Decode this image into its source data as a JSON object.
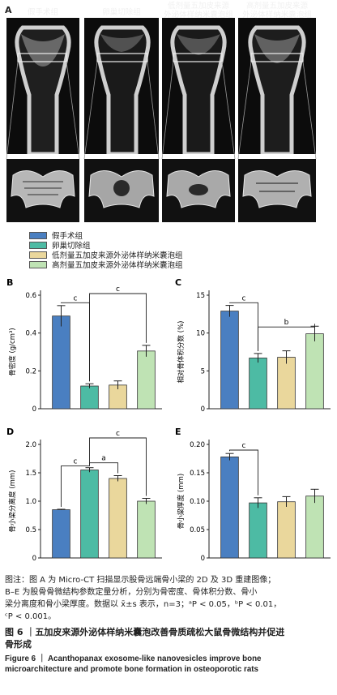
{
  "panelA": {
    "letter": "A",
    "groups": [
      "假手术组",
      "卵巢切除组",
      "低剂量五加皮来源外泌体样纳米囊泡组",
      "高剂量五加皮来源外泌体样纳米囊泡组"
    ],
    "titles_2d": [
      [
        "假手术组"
      ],
      [
        "卵巢切除组"
      ],
      [
        "低剂量五加皮来源",
        "外泌体样纳米囊泡组"
      ],
      [
        "高剂量五加皮来源",
        "外泌体样纳米囊泡组"
      ]
    ]
  },
  "legend": [
    {
      "label": "假手术组",
      "color": "#4a7fc1"
    },
    {
      "label": "卵巢切除组",
      "color": "#4dbba4"
    },
    {
      "label": "低剂量五加皮来源外泌体样纳米囊泡组",
      "color": "#ead79c"
    },
    {
      "label": "高剂量五加皮来源外泌体样纳米囊泡组",
      "color": "#bfe3b4"
    }
  ],
  "chart_data": [
    {
      "panel": "B",
      "type": "bar",
      "ylabel": "骨密度 (g/cm³)",
      "ylim": [
        0,
        0.6
      ],
      "yticks": [
        "0",
        "0.2",
        "0.4",
        "0.6"
      ],
      "values": [
        0.49,
        0.12,
        0.125,
        0.305
      ],
      "errors": [
        0.055,
        0.012,
        0.022,
        0.03
      ],
      "brackets": [
        {
          "from": 0,
          "to": 1,
          "label": "c"
        },
        {
          "from": 1,
          "to": 3,
          "label": "c"
        }
      ]
    },
    {
      "panel": "C",
      "type": "bar",
      "ylabel": "相对骨体积分数 (%)",
      "ylim": [
        0,
        15
      ],
      "yticks": [
        "0",
        "5",
        "10",
        "15"
      ],
      "values": [
        12.9,
        6.7,
        6.8,
        9.9
      ],
      "errors": [
        0.75,
        0.6,
        0.85,
        1.0
      ],
      "brackets": [
        {
          "from": 0,
          "to": 1,
          "label": "c"
        },
        {
          "from": 1,
          "to": 3,
          "label": "b"
        }
      ]
    },
    {
      "panel": "D",
      "type": "bar",
      "ylabel": "骨小梁分离度 (mm)",
      "ylim": [
        0,
        2.0
      ],
      "yticks": [
        "0",
        "0.5",
        "1.0",
        "1.5",
        "2.0"
      ],
      "values": [
        0.85,
        1.55,
        1.4,
        1.0
      ],
      "errors": [
        0.008,
        0.04,
        0.05,
        0.05
      ],
      "brackets": [
        {
          "from": 0,
          "to": 1,
          "label": "c"
        },
        {
          "from": 1,
          "to": 2,
          "label": "a"
        },
        {
          "from": 1,
          "to": 3,
          "label": "c"
        }
      ]
    },
    {
      "panel": "E",
      "type": "bar",
      "ylabel": "骨小梁厚度 (mm)",
      "ylim": [
        0,
        0.2
      ],
      "yticks": [
        "0",
        "0.05",
        "0.10",
        "0.15",
        "0.20"
      ],
      "values": [
        0.178,
        0.097,
        0.099,
        0.109
      ],
      "errors": [
        0.006,
        0.009,
        0.009,
        0.012
      ],
      "brackets": [
        {
          "from": 0,
          "to": 1,
          "label": "c"
        }
      ]
    }
  ],
  "caption": {
    "line1": "图注：图 A 为 Micro-CT 扫描显示股骨远端骨小梁的 2D 及 3D 重建图像；",
    "line2": "B–E 为股骨骨微结构参数定量分析，分别为骨密度、骨体积分数、骨小",
    "line3": "梁分离度和骨小梁厚度。数据以 x̄±s 表示，n=3；ᵃP < 0.05，ᵇP < 0.01，",
    "line4": "ᶜP < 0.001。"
  },
  "figure_title_cn_1": "图 6 ｜五加皮来源外泌体样纳米囊泡改善骨质疏松大鼠骨微结构并促进",
  "figure_title_cn_2": "骨形成",
  "figure_title_en_1": "Figure 6 ｜ Acanthopanax exosome-like nanovesicles improve bone",
  "figure_title_en_2": "microarchitecture and promote bone formation in osteoporotic rats"
}
